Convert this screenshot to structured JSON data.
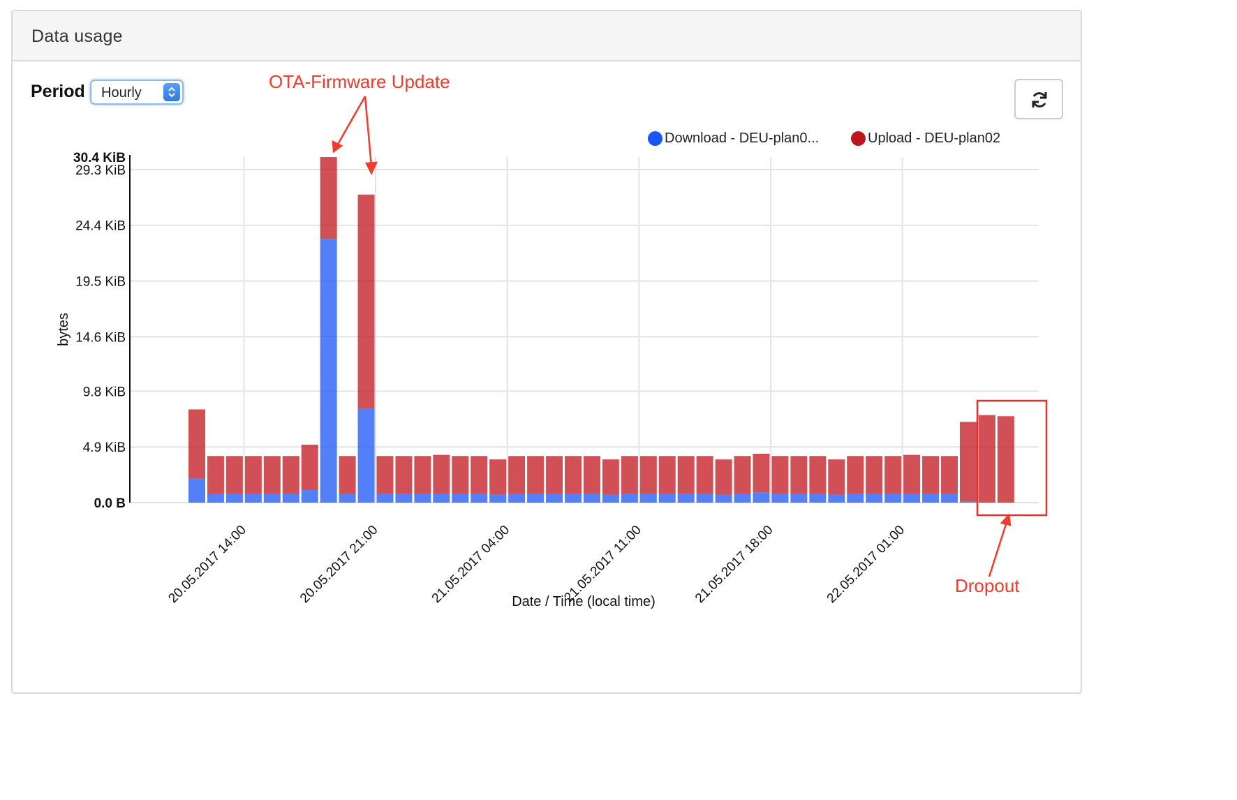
{
  "panel": {
    "title": "Data usage"
  },
  "period": {
    "label": "Period",
    "selected": "Hourly"
  },
  "icons": {
    "refresh": "refresh-icon",
    "select_arrows": "chevron-up-down-icon"
  },
  "colors": {
    "download": "#1a56f5",
    "upload": "#c0151c",
    "annotation": "#f23a2e"
  },
  "annotations": {
    "ota": "OTA-Firmware Update",
    "dropout": "Dropout"
  },
  "chart_data": {
    "type": "bar",
    "stacked": true,
    "xlabel": "Date / Time (local time)",
    "ylabel": "bytes",
    "ylim": [
      0,
      30.4
    ],
    "y_unit": "KiB",
    "y_ticks": [
      "0.0 B",
      "4.9 KiB",
      "9.8 KiB",
      "14.6 KiB",
      "19.5 KiB",
      "24.4 KiB",
      "29.3 KiB",
      "30.4 KiB"
    ],
    "y_tick_values": [
      0,
      4.9,
      9.8,
      14.6,
      19.5,
      24.4,
      29.3,
      30.4
    ],
    "x_tick_labels": [
      "20.05.2017 14:00",
      "20.05.2017 21:00",
      "21.05.2017 04:00",
      "21.05.2017 11:00",
      "21.05.2017 18:00",
      "22.05.2017 01:00"
    ],
    "x_tick_bar_index": [
      3,
      10,
      17,
      24,
      31,
      38
    ],
    "grid": true,
    "legend_position": "top-right",
    "series": [
      {
        "name": "Download - DEU-plan0...",
        "color": "#1a56f5",
        "values": [
          2.1,
          0.8,
          0.8,
          0.8,
          0.8,
          0.8,
          1.1,
          23.2,
          0.8,
          8.3,
          0.8,
          0.8,
          0.8,
          0.8,
          0.8,
          0.8,
          0.7,
          0.8,
          0.8,
          0.8,
          0.8,
          0.8,
          0.7,
          0.8,
          0.8,
          0.8,
          0.8,
          0.8,
          0.7,
          0.8,
          0.9,
          0.8,
          0.8,
          0.8,
          0.7,
          0.8,
          0.8,
          0.8,
          0.8,
          0.8,
          0.8,
          0.1,
          0.0,
          0.0
        ]
      },
      {
        "name": "Upload - DEU-plan02",
        "color": "#c0151c",
        "values": [
          6.1,
          3.3,
          3.3,
          3.3,
          3.3,
          3.3,
          4.0,
          7.2,
          3.3,
          18.8,
          3.3,
          3.3,
          3.3,
          3.4,
          3.3,
          3.3,
          3.1,
          3.3,
          3.3,
          3.3,
          3.3,
          3.3,
          3.1,
          3.3,
          3.3,
          3.3,
          3.3,
          3.3,
          3.1,
          3.3,
          3.4,
          3.3,
          3.3,
          3.3,
          3.1,
          3.3,
          3.3,
          3.3,
          3.4,
          3.3,
          3.3,
          7.0,
          7.7,
          7.6
        ]
      }
    ]
  }
}
